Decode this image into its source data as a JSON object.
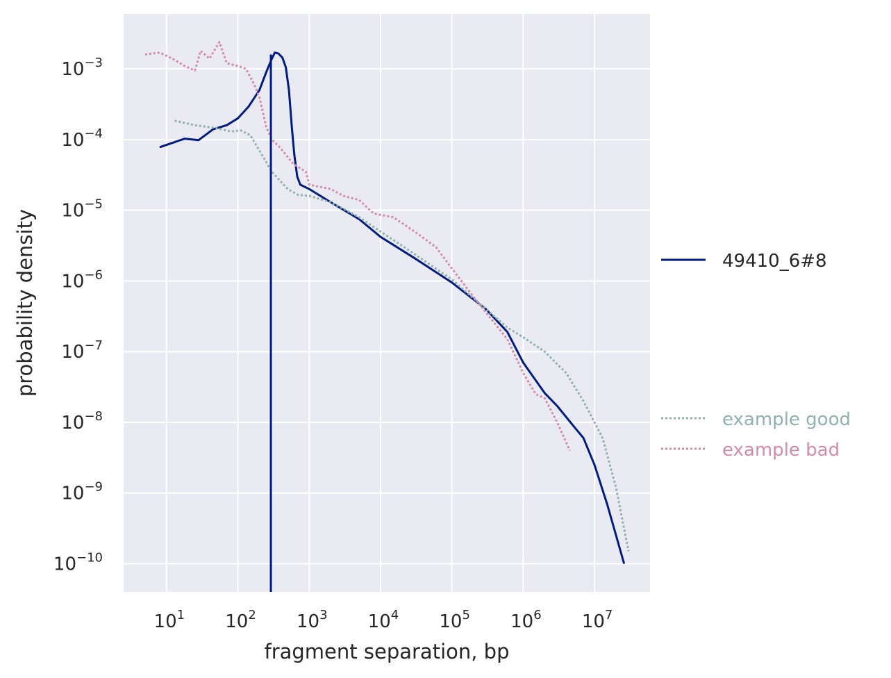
{
  "chart_data": {
    "type": "line",
    "xlabel": "fragment separation, bp",
    "ylabel": "probability density",
    "x_scale": "log",
    "y_scale": "log",
    "xlim": [
      2.5,
      60000000
    ],
    "ylim": [
      4e-11,
      0.006
    ],
    "grid": true,
    "background": "#eaeaf2",
    "x_ticks": [
      {
        "value": 10,
        "base": "10",
        "exp": "1"
      },
      {
        "value": 100,
        "base": "10",
        "exp": "2"
      },
      {
        "value": 1000,
        "base": "10",
        "exp": "3"
      },
      {
        "value": 10000,
        "base": "10",
        "exp": "4"
      },
      {
        "value": 100000,
        "base": "10",
        "exp": "5"
      },
      {
        "value": 1000000,
        "base": "10",
        "exp": "6"
      },
      {
        "value": 10000000,
        "base": "10",
        "exp": "7"
      }
    ],
    "y_ticks": [
      {
        "value": 0.001,
        "base": "10",
        "exp": "−3"
      },
      {
        "value": 0.0001,
        "base": "10",
        "exp": "−4"
      },
      {
        "value": 1e-05,
        "base": "10",
        "exp": "−5"
      },
      {
        "value": 1e-06,
        "base": "10",
        "exp": "−6"
      },
      {
        "value": 1e-07,
        "base": "10",
        "exp": "−7"
      },
      {
        "value": 1e-08,
        "base": "10",
        "exp": "−8"
      },
      {
        "value": 1e-09,
        "base": "10",
        "exp": "−9"
      },
      {
        "value": 1e-10,
        "base": "10",
        "exp": "−10"
      }
    ],
    "vline": {
      "x": 290,
      "color": "#001c7f"
    },
    "series": [
      {
        "name": "49410_6#8",
        "color": "#001c7f",
        "style": "solid",
        "points": [
          [
            8,
            7.8e-05
          ],
          [
            18,
            0.000103
          ],
          [
            28,
            9.8e-05
          ],
          [
            45,
            0.00014
          ],
          [
            70,
            0.00016
          ],
          [
            100,
            0.0002
          ],
          [
            140,
            0.00029
          ],
          [
            200,
            0.0005
          ],
          [
            250,
            0.0009
          ],
          [
            300,
            0.0014
          ],
          [
            330,
            0.0017
          ],
          [
            370,
            0.00165
          ],
          [
            420,
            0.00145
          ],
          [
            470,
            0.00105
          ],
          [
            520,
            0.0005
          ],
          [
            570,
            0.00015
          ],
          [
            620,
            6e-05
          ],
          [
            680,
            3e-05
          ],
          [
            750,
            2.3e-05
          ],
          [
            1000,
            2e-05
          ],
          [
            2000,
            1.3e-05
          ],
          [
            5000,
            7.5e-06
          ],
          [
            10000,
            4.2e-06
          ],
          [
            30000,
            2.1e-06
          ],
          [
            100000,
            9.5e-07
          ],
          [
            300000,
            4e-07
          ],
          [
            600000,
            1.9e-07
          ],
          [
            1000000,
            7e-08
          ],
          [
            2000000,
            2.6e-08
          ],
          [
            3000000,
            1.7e-08
          ],
          [
            5000000,
            9e-09
          ],
          [
            7000000,
            6e-09
          ],
          [
            10000000,
            2.5e-09
          ],
          [
            15000000,
            7e-10
          ],
          [
            26000000,
            1e-10
          ]
        ]
      },
      {
        "name": "example good",
        "color": "#8fb2ab",
        "style": "dotted",
        "points": [
          [
            13,
            0.000185
          ],
          [
            25,
            0.00016
          ],
          [
            50,
            0.000145
          ],
          [
            80,
            0.00013
          ],
          [
            110,
            0.000135
          ],
          [
            150,
            0.000115
          ],
          [
            200,
            7e-05
          ],
          [
            300,
            3.5e-05
          ],
          [
            500,
            2e-05
          ],
          [
            700,
            1.65e-05
          ],
          [
            1000,
            1.6e-05
          ],
          [
            2000,
            1.3e-05
          ],
          [
            5000,
            8e-06
          ],
          [
            10000,
            5e-06
          ],
          [
            30000,
            2.4e-06
          ],
          [
            100000,
            1.05e-06
          ],
          [
            300000,
            4e-07
          ],
          [
            600000,
            2.2e-07
          ],
          [
            1000000,
            1.6e-07
          ],
          [
            2000000,
            1e-07
          ],
          [
            4000000,
            5e-08
          ],
          [
            7000000,
            2e-08
          ],
          [
            13000000,
            6e-09
          ],
          [
            20000000,
            1.2e-09
          ],
          [
            30000000,
            1.5e-10
          ]
        ]
      },
      {
        "name": "example bad",
        "color": "#d18ca8",
        "style": "dotted",
        "points": [
          [
            5,
            0.0016
          ],
          [
            8,
            0.0017
          ],
          [
            12,
            0.0014
          ],
          [
            18,
            0.0011
          ],
          [
            25,
            0.00095
          ],
          [
            30,
            0.0018
          ],
          [
            40,
            0.0014
          ],
          [
            55,
            0.0024
          ],
          [
            70,
            0.0012
          ],
          [
            100,
            0.0011
          ],
          [
            130,
            0.001
          ],
          [
            170,
            0.0006
          ],
          [
            200,
            0.0004
          ],
          [
            250,
            0.00015
          ],
          [
            300,
            0.0001
          ],
          [
            400,
            7.5e-05
          ],
          [
            600,
            4.5e-05
          ],
          [
            900,
            3.5e-05
          ],
          [
            1000,
            2.3e-05
          ],
          [
            2000,
            2e-05
          ],
          [
            3000,
            1.6e-05
          ],
          [
            5000,
            1.4e-05
          ],
          [
            8000,
            9e-06
          ],
          [
            15000,
            8e-06
          ],
          [
            30000,
            5e-06
          ],
          [
            60000,
            3e-06
          ],
          [
            100000,
            1.5e-06
          ],
          [
            200000,
            6e-07
          ],
          [
            400000,
            2.5e-07
          ],
          [
            600000,
            1.5e-07
          ],
          [
            1000000,
            5e-08
          ],
          [
            1500000,
            2.5e-08
          ],
          [
            2000000,
            2.2e-08
          ],
          [
            3000000,
            1e-08
          ],
          [
            4500000,
            4e-09
          ]
        ]
      }
    ],
    "legend": {
      "placement": "right",
      "entries": [
        {
          "label": "49410_6#8",
          "color": "#001c7f",
          "style": "solid"
        },
        {
          "label": "example good",
          "color": "#8fb2ab",
          "style": "dotted"
        },
        {
          "label": "example bad",
          "color": "#d18ca8",
          "style": "dotted"
        }
      ]
    }
  }
}
